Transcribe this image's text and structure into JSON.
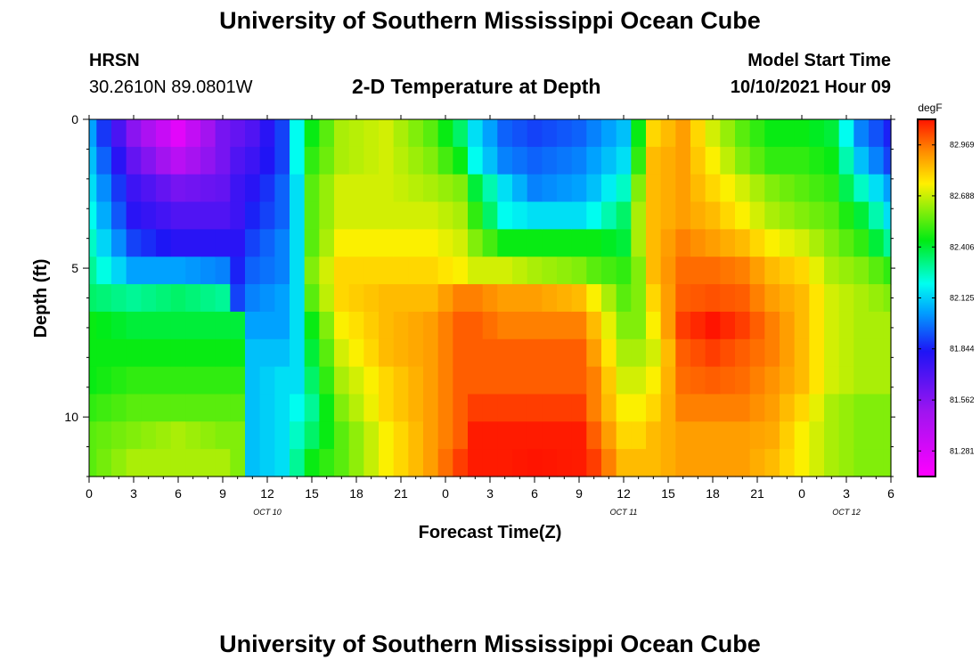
{
  "page": {
    "title_top": "University of Southern Mississippi Ocean Cube",
    "title_bottom": "University of Southern Mississippi Ocean Cube",
    "station_name": "HRSN",
    "station_coords": "30.2610N  89.0801W",
    "chart_heading": "2-D Temperature at Depth",
    "model_label": "Model Start Time",
    "model_start": "10/10/2021 Hour 09"
  },
  "chart_data": {
    "type": "heatmap",
    "title": "2-D Temperature at Depth",
    "xlabel": "Forecast Time(Z)",
    "ylabel": "Depth (ft)",
    "colorbar_unit": "degF",
    "x_hours": [
      0,
      1,
      2,
      3,
      4,
      5,
      6,
      7,
      8,
      9,
      10,
      11,
      12,
      13,
      14,
      15,
      16,
      17,
      18,
      19,
      20,
      21,
      22,
      23,
      24,
      25,
      26,
      27,
      28,
      29,
      30,
      31,
      32,
      33,
      34,
      35,
      36,
      37,
      38,
      39,
      40,
      41,
      42,
      43,
      44,
      45,
      46,
      47,
      48,
      49,
      50,
      51,
      52,
      53,
      54
    ],
    "xlim": [
      0,
      54
    ],
    "x_tick_values": [
      0,
      3,
      6,
      9,
      12,
      15,
      18,
      21,
      24,
      27,
      30,
      33,
      36,
      39,
      42,
      45,
      48,
      51,
      54
    ],
    "x_tick_labels": [
      "0",
      "3",
      "6",
      "9",
      "12",
      "15",
      "18",
      "21",
      "0",
      "3",
      "6",
      "9",
      "12",
      "15",
      "18",
      "21",
      "0",
      "3",
      "6"
    ],
    "date_labels": [
      {
        "x": 12,
        "label": "OCT 10"
      },
      {
        "x": 36,
        "label": "OCT 11"
      },
      {
        "x": 51,
        "label": "OCT 12"
      }
    ],
    "depths_ft": [
      0,
      1,
      2,
      3,
      4,
      5,
      6,
      7,
      8,
      9,
      10,
      11,
      12
    ],
    "ylim": [
      0,
      12
    ],
    "y_tick_values": [
      0,
      5,
      10
    ],
    "y_tick_labels": [
      "0",
      "5",
      "10"
    ],
    "colorbar": {
      "min": 81.14,
      "max": 83.11,
      "tick_values": [
        81.281,
        81.562,
        81.844,
        82.125,
        82.406,
        82.688,
        82.969
      ],
      "tick_labels": [
        "81.281",
        "81.562",
        "81.844",
        "82.125",
        "82.406",
        "82.688",
        "82.969"
      ]
    },
    "keyframes": [
      {
        "x": 0,
        "values": [
          82.05,
          82.1,
          82.15,
          82.2,
          82.25,
          82.3,
          82.35,
          82.45,
          82.45,
          82.45,
          82.5,
          82.55,
          82.55
        ]
      },
      {
        "x": 3,
        "values": [
          81.55,
          81.65,
          81.75,
          81.8,
          81.9,
          82.05,
          82.3,
          82.4,
          82.45,
          82.5,
          82.55,
          82.6,
          82.65
        ]
      },
      {
        "x": 6,
        "values": [
          81.25,
          81.4,
          81.6,
          81.7,
          81.8,
          82.05,
          82.35,
          82.4,
          82.45,
          82.5,
          82.55,
          82.65,
          82.65
        ]
      },
      {
        "x": 9,
        "values": [
          81.6,
          81.6,
          81.65,
          81.7,
          81.8,
          82.0,
          82.3,
          82.4,
          82.45,
          82.5,
          82.55,
          82.6,
          82.65
        ]
      },
      {
        "x": 10,
        "values": [
          81.65,
          81.7,
          81.75,
          81.75,
          81.8,
          81.85,
          81.9,
          82.4,
          82.45,
          82.5,
          82.55,
          82.6,
          82.6
        ]
      },
      {
        "x": 11,
        "values": [
          81.7,
          81.75,
          81.8,
          81.85,
          81.9,
          81.95,
          82.0,
          82.05,
          82.1,
          82.1,
          82.1,
          82.1,
          82.1
        ]
      },
      {
        "x": 13,
        "values": [
          81.9,
          81.9,
          81.95,
          81.95,
          82.0,
          82.0,
          82.05,
          82.05,
          82.1,
          82.15,
          82.15,
          82.15,
          82.15
        ]
      },
      {
        "x": 14,
        "values": [
          82.2,
          82.2,
          82.15,
          82.15,
          82.15,
          82.15,
          82.15,
          82.15,
          82.15,
          82.15,
          82.2,
          82.25,
          82.3
        ]
      },
      {
        "x": 15,
        "values": [
          82.45,
          82.5,
          82.55,
          82.55,
          82.55,
          82.6,
          82.55,
          82.45,
          82.4,
          82.35,
          82.3,
          82.35,
          82.45
        ]
      },
      {
        "x": 17,
        "values": [
          82.65,
          82.65,
          82.7,
          82.7,
          82.75,
          82.8,
          82.8,
          82.75,
          82.7,
          82.65,
          82.6,
          82.55,
          82.55
        ]
      },
      {
        "x": 20,
        "values": [
          82.7,
          82.7,
          82.7,
          82.7,
          82.75,
          82.8,
          82.85,
          82.85,
          82.85,
          82.8,
          82.8,
          82.75,
          82.75
        ]
      },
      {
        "x": 23,
        "values": [
          82.55,
          82.6,
          82.65,
          82.7,
          82.75,
          82.8,
          82.85,
          82.9,
          82.9,
          82.9,
          82.9,
          82.9,
          82.9
        ]
      },
      {
        "x": 25,
        "values": [
          82.35,
          82.45,
          82.6,
          82.65,
          82.7,
          82.75,
          82.95,
          83.0,
          83.0,
          83.0,
          83.0,
          83.0,
          83.05
        ]
      },
      {
        "x": 26,
        "values": [
          82.15,
          82.2,
          82.4,
          82.5,
          82.6,
          82.7,
          82.95,
          83.0,
          83.0,
          83.0,
          83.05,
          83.1,
          83.1
        ]
      },
      {
        "x": 28,
        "values": [
          81.95,
          82.0,
          82.15,
          82.2,
          82.45,
          82.7,
          82.9,
          82.95,
          83.0,
          83.0,
          83.05,
          83.1,
          83.1
        ]
      },
      {
        "x": 30,
        "values": [
          81.9,
          81.95,
          82.0,
          82.15,
          82.45,
          82.65,
          82.9,
          82.95,
          83.0,
          83.0,
          83.05,
          83.1,
          83.11
        ]
      },
      {
        "x": 33,
        "values": [
          81.95,
          82.0,
          82.05,
          82.15,
          82.45,
          82.6,
          82.85,
          82.95,
          83.0,
          83.0,
          83.05,
          83.1,
          83.1
        ]
      },
      {
        "x": 34,
        "values": [
          82.0,
          82.05,
          82.1,
          82.2,
          82.45,
          82.55,
          82.75,
          82.85,
          82.9,
          82.95,
          82.95,
          83.0,
          83.05
        ]
      },
      {
        "x": 36,
        "values": [
          82.1,
          82.15,
          82.25,
          82.35,
          82.4,
          82.5,
          82.55,
          82.6,
          82.65,
          82.7,
          82.75,
          82.8,
          82.85
        ]
      },
      {
        "x": 37,
        "values": [
          82.45,
          82.5,
          82.6,
          82.65,
          82.65,
          82.6,
          82.6,
          82.6,
          82.65,
          82.7,
          82.75,
          82.8,
          82.85
        ]
      },
      {
        "x": 38,
        "values": [
          82.8,
          82.85,
          82.85,
          82.85,
          82.85,
          82.85,
          82.8,
          82.75,
          82.7,
          82.75,
          82.8,
          82.85,
          82.85
        ]
      },
      {
        "x": 40,
        "values": [
          82.9,
          82.9,
          82.9,
          82.9,
          82.95,
          82.98,
          83.0,
          83.05,
          83.0,
          82.98,
          82.95,
          82.9,
          82.9
        ]
      },
      {
        "x": 42,
        "values": [
          82.7,
          82.75,
          82.8,
          82.85,
          82.9,
          82.98,
          83.02,
          83.11,
          83.05,
          83.0,
          82.95,
          82.9,
          82.9
        ]
      },
      {
        "x": 44,
        "values": [
          82.55,
          82.6,
          82.7,
          82.75,
          82.85,
          82.95,
          83.0,
          83.05,
          83.0,
          82.98,
          82.95,
          82.9,
          82.9
        ]
      },
      {
        "x": 46,
        "values": [
          82.45,
          82.5,
          82.6,
          82.65,
          82.75,
          82.85,
          82.9,
          82.95,
          82.95,
          82.92,
          82.9,
          82.88,
          82.85
        ]
      },
      {
        "x": 48,
        "values": [
          82.45,
          82.5,
          82.55,
          82.6,
          82.7,
          82.8,
          82.85,
          82.85,
          82.85,
          82.85,
          82.8,
          82.75,
          82.75
        ]
      },
      {
        "x": 50,
        "values": [
          82.4,
          82.45,
          82.5,
          82.55,
          82.6,
          82.65,
          82.7,
          82.7,
          82.7,
          82.7,
          82.65,
          82.65,
          82.65
        ]
      },
      {
        "x": 52,
        "values": [
          82.0,
          82.1,
          82.25,
          82.4,
          82.5,
          82.6,
          82.65,
          82.65,
          82.65,
          82.65,
          82.6,
          82.6,
          82.6
        ]
      },
      {
        "x": 54,
        "values": [
          81.85,
          81.9,
          82.05,
          82.15,
          82.3,
          82.5,
          82.6,
          82.65,
          82.65,
          82.65,
          82.6,
          82.6,
          82.6
        ]
      }
    ]
  }
}
